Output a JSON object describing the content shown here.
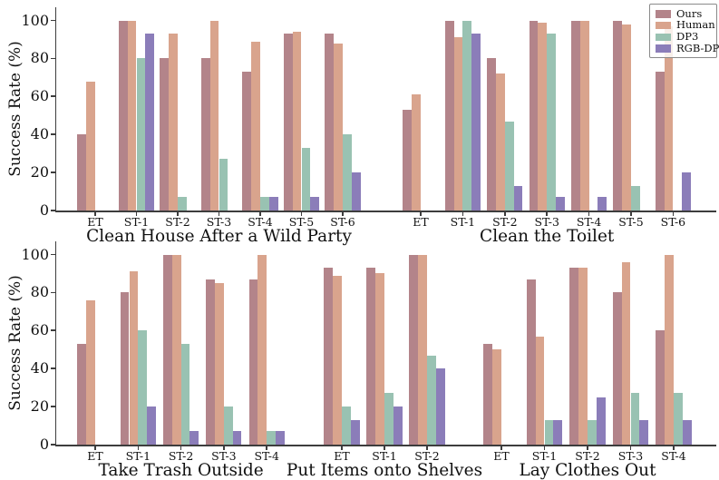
{
  "chart_data": {
    "type": "bar",
    "title": "",
    "ylabel": "Success Rate (%)",
    "ylim": [
      0,
      107
    ],
    "yticks": [
      0,
      20,
      40,
      60,
      80,
      100
    ],
    "grid": false,
    "legend_position": "upper-right",
    "series_names": [
      "Ours",
      "Human",
      "DP3",
      "RGB-DP"
    ],
    "series_colors": [
      "#b3848a",
      "#d9a48d",
      "#99c2b2",
      "#8b7db9"
    ],
    "axis_color": "#3d3d3d",
    "rows": [
      {
        "panels": [
          {
            "title": "Clean House After a Wild Party",
            "categories": [
              "ET",
              "ST-1",
              "ST-2",
              "ST-3",
              "ST-4",
              "ST-5",
              "ST-6"
            ],
            "series": [
              {
                "name": "Ours",
                "values": [
                  40,
                  100,
                  80,
                  80,
                  73,
                  93,
                  93
                ]
              },
              {
                "name": "Human",
                "values": [
                  68,
                  100,
                  93,
                  100,
                  89,
                  94,
                  88
                ]
              },
              {
                "name": "DP3",
                "values": [
                  0,
                  80,
                  7,
                  27,
                  7,
                  33,
                  40
                ]
              },
              {
                "name": "RGB-DP",
                "values": [
                  0,
                  93,
                  0,
                  0,
                  7,
                  7,
                  20
                ]
              }
            ]
          },
          {
            "title": "Clean the Toilet",
            "categories": [
              "ET",
              "ST-1",
              "ST-2",
              "ST-3",
              "ST-4",
              "ST-5",
              "ST-6"
            ],
            "series": [
              {
                "name": "Ours",
                "values": [
                  53,
                  100,
                  80,
                  100,
                  100,
                  100,
                  73
                ]
              },
              {
                "name": "Human",
                "values": [
                  61,
                  91,
                  72,
                  99,
                  100,
                  98,
                  97
                ]
              },
              {
                "name": "DP3",
                "values": [
                  0,
                  100,
                  47,
                  93,
                  0,
                  13,
                  0
                ]
              },
              {
                "name": "RGB-DP",
                "values": [
                  0,
                  93,
                  13,
                  7,
                  7,
                  0,
                  20
                ]
              }
            ]
          }
        ]
      },
      {
        "panels": [
          {
            "title": "Take Trash Outside",
            "categories": [
              "ET",
              "ST-1",
              "ST-2",
              "ST-3",
              "ST-4"
            ],
            "series": [
              {
                "name": "Ours",
                "values": [
                  53,
                  80,
                  100,
                  87,
                  87
                ]
              },
              {
                "name": "Human",
                "values": [
                  76,
                  91,
                  100,
                  85,
                  100
                ]
              },
              {
                "name": "DP3",
                "values": [
                  0,
                  60,
                  53,
                  20,
                  7
                ]
              },
              {
                "name": "RGB-DP",
                "values": [
                  0,
                  20,
                  7,
                  7,
                  7
                ]
              }
            ]
          },
          {
            "title": "Put Items onto Shelves",
            "categories": [
              "ET",
              "ST-1",
              "ST-2"
            ],
            "series": [
              {
                "name": "Ours",
                "values": [
                  93,
                  93,
                  100
                ]
              },
              {
                "name": "Human",
                "values": [
                  89,
                  90,
                  100
                ]
              },
              {
                "name": "DP3",
                "values": [
                  20,
                  27,
                  47
                ]
              },
              {
                "name": "RGB-DP",
                "values": [
                  13,
                  20,
                  40
                ]
              }
            ]
          },
          {
            "title": "Lay Clothes Out",
            "categories": [
              "ET",
              "ST-1",
              "ST-2",
              "ST-3",
              "ST-4"
            ],
            "series": [
              {
                "name": "Ours",
                "values": [
                  53,
                  87,
                  93,
                  80,
                  60
                ]
              },
              {
                "name": "Human",
                "values": [
                  50,
                  57,
                  93,
                  96,
                  100
                ]
              },
              {
                "name": "DP3",
                "values": [
                  0,
                  13,
                  13,
                  27,
                  27
                ]
              },
              {
                "name": "RGB-DP",
                "values": [
                  0,
                  13,
                  25,
                  13,
                  13
                ]
              }
            ]
          }
        ]
      }
    ]
  },
  "legend": {
    "entries": [
      {
        "label": "Ours",
        "color": "#b3848a"
      },
      {
        "label": "Human",
        "color": "#d9a48d"
      },
      {
        "label": "DP3",
        "color": "#99c2b2"
      },
      {
        "label": "RGB-DP",
        "color": "#8b7db9"
      }
    ]
  }
}
